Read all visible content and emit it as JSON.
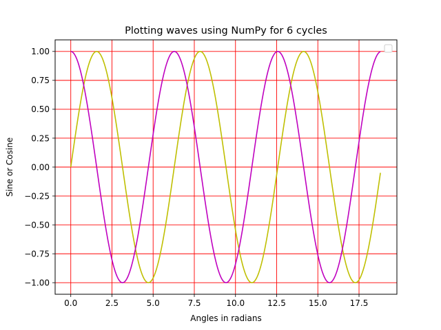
{
  "chart_data": {
    "type": "line",
    "title": "Plotting waves using NumPy for 6 cycles",
    "xlabel": "Angles in radians",
    "ylabel": "Sine or Cosine",
    "xlim": [
      -0.95,
      19.8
    ],
    "ylim": [
      -1.1,
      1.1
    ],
    "x_ticks": [
      0.0,
      2.5,
      5.0,
      7.5,
      10.0,
      12.5,
      15.0,
      17.5
    ],
    "x_tick_labels": [
      "0.0",
      "2.5",
      "5.0",
      "7.5",
      "10.0",
      "12.5",
      "15.0",
      "17.5"
    ],
    "y_ticks": [
      -1.0,
      -0.75,
      -0.5,
      -0.25,
      0.0,
      0.25,
      0.5,
      0.75,
      1.0
    ],
    "y_tick_labels": [
      "−1.00",
      "−0.75",
      "−0.50",
      "−0.25",
      "0.00",
      "0.25",
      "0.50",
      "0.75",
      "1.00"
    ],
    "grid": true,
    "grid_color": "#ff0000",
    "legend": "upper-right, empty",
    "x_range": [
      0.0,
      18.8
    ],
    "series": [
      {
        "function": "sin",
        "color": "#bfbf00"
      },
      {
        "function": "cos",
        "color": "#bf00bf"
      }
    ]
  }
}
